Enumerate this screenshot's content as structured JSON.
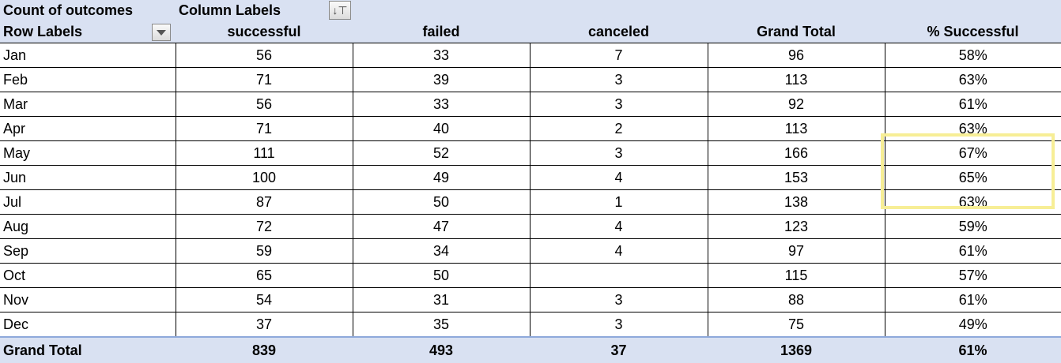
{
  "header": {
    "values_label": "Count of outcomes",
    "column_labels": "Column Labels",
    "row_labels": "Row Labels",
    "columns": [
      "successful",
      "failed",
      "canceled",
      "Grand Total",
      "% Successful"
    ]
  },
  "rows": [
    {
      "month": "Jan",
      "successful": "56",
      "failed": "33",
      "canceled": "7",
      "total": "96",
      "pct": "58%"
    },
    {
      "month": "Feb",
      "successful": "71",
      "failed": "39",
      "canceled": "3",
      "total": "113",
      "pct": "63%"
    },
    {
      "month": "Mar",
      "successful": "56",
      "failed": "33",
      "canceled": "3",
      "total": "92",
      "pct": "61%"
    },
    {
      "month": "Apr",
      "successful": "71",
      "failed": "40",
      "canceled": "2",
      "total": "113",
      "pct": "63%"
    },
    {
      "month": "May",
      "successful": "111",
      "failed": "52",
      "canceled": "3",
      "total": "166",
      "pct": "67%"
    },
    {
      "month": "Jun",
      "successful": "100",
      "failed": "49",
      "canceled": "4",
      "total": "153",
      "pct": "65%"
    },
    {
      "month": "Jul",
      "successful": "87",
      "failed": "50",
      "canceled": "1",
      "total": "138",
      "pct": "63%"
    },
    {
      "month": "Aug",
      "successful": "72",
      "failed": "47",
      "canceled": "4",
      "total": "123",
      "pct": "59%"
    },
    {
      "month": "Sep",
      "successful": "59",
      "failed": "34",
      "canceled": "4",
      "total": "97",
      "pct": "61%"
    },
    {
      "month": "Oct",
      "successful": "65",
      "failed": "50",
      "canceled": "",
      "total": "115",
      "pct": "57%"
    },
    {
      "month": "Nov",
      "successful": "54",
      "failed": "31",
      "canceled": "3",
      "total": "88",
      "pct": "61%"
    },
    {
      "month": "Dec",
      "successful": "37",
      "failed": "35",
      "canceled": "3",
      "total": "75",
      "pct": "49%"
    }
  ],
  "grand_total": {
    "label": "Grand Total",
    "successful": "839",
    "failed": "493",
    "canceled": "37",
    "total": "1369",
    "pct": "61%"
  },
  "icons": {
    "row_filter": "dropdown-arrow-icon",
    "column_filter": "sort-filter-icon"
  },
  "colors": {
    "header_bg": "#d9e1f2",
    "highlight": "#f7ee96"
  }
}
